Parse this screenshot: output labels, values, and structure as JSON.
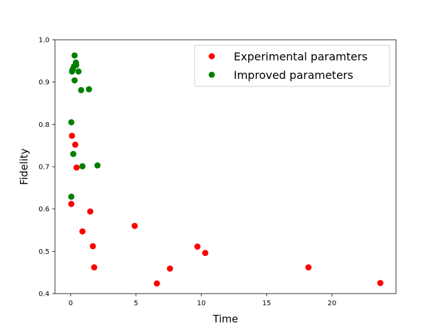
{
  "chart_data": {
    "type": "scatter",
    "title": "",
    "xlabel": "Time",
    "ylabel": "Fidelity",
    "xlim": [
      -1.2,
      24.9
    ],
    "ylim": [
      0.4,
      1.0
    ],
    "xticks": [
      0,
      5,
      10,
      15,
      20
    ],
    "yticks": [
      0.4,
      0.5,
      0.6,
      0.7,
      0.8,
      0.9,
      1.0
    ],
    "xtick_labels": [
      "0",
      "5",
      "10",
      "15",
      "20"
    ],
    "ytick_labels": [
      "0.4",
      "0.5",
      "0.6",
      "0.7",
      "0.8",
      "0.9",
      "1.0"
    ],
    "grid": false,
    "legend_position": "top-right",
    "series": [
      {
        "name": "Experimental paramters",
        "color": "#ff0000",
        "points": [
          [
            0.05,
            0.612
          ],
          [
            0.1,
            0.773
          ],
          [
            0.35,
            0.752
          ],
          [
            0.45,
            0.698
          ],
          [
            0.9,
            0.547
          ],
          [
            1.5,
            0.594
          ],
          [
            1.7,
            0.512
          ],
          [
            1.8,
            0.462
          ],
          [
            4.9,
            0.56
          ],
          [
            6.6,
            0.424
          ],
          [
            7.6,
            0.459
          ],
          [
            9.7,
            0.511
          ],
          [
            10.3,
            0.496
          ],
          [
            18.2,
            0.462
          ],
          [
            23.7,
            0.425
          ]
        ]
      },
      {
        "name": "Improved parameters",
        "color": "#008000",
        "points": [
          [
            0.05,
            0.629
          ],
          [
            0.05,
            0.805
          ],
          [
            0.1,
            0.925
          ],
          [
            0.15,
            0.93
          ],
          [
            0.2,
            0.73
          ],
          [
            0.25,
            0.937
          ],
          [
            0.3,
            0.904
          ],
          [
            0.3,
            0.963
          ],
          [
            0.4,
            0.946
          ],
          [
            0.42,
            0.94
          ],
          [
            0.6,
            0.925
          ],
          [
            0.8,
            0.881
          ],
          [
            0.9,
            0.701
          ],
          [
            1.4,
            0.883
          ],
          [
            2.05,
            0.703
          ]
        ]
      }
    ]
  }
}
